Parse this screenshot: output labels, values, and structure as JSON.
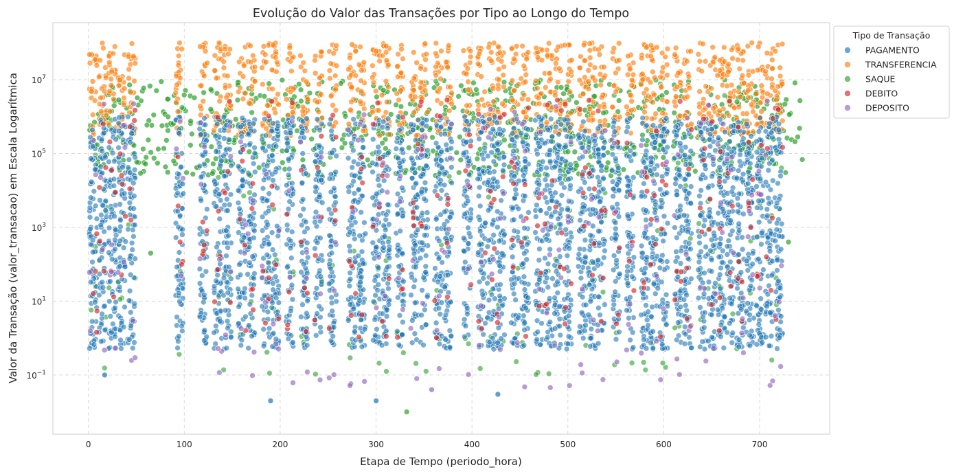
{
  "chart_data": {
    "type": "scatter",
    "title": "Evolução do Valor das Transações por Tipo ao Longo do Tempo",
    "xlabel": "Etapa de Tempo (periodo_hora)",
    "ylabel": "Valor da Transação (valor_transacao) em Escala Logarítmica",
    "xlim": [
      -37,
      773
    ],
    "x_ticks": [
      0,
      100,
      200,
      300,
      400,
      500,
      600,
      700
    ],
    "y_scale": "log",
    "ylim": [
      0.0025,
      350000000
    ],
    "y_ticks": [
      {
        "value": 0.1,
        "base": "10",
        "exp": "−1"
      },
      {
        "value": 10,
        "base": "10",
        "exp": "1"
      },
      {
        "value": 1000,
        "base": "10",
        "exp": "3"
      },
      {
        "value": 100000,
        "base": "10",
        "exp": "5"
      },
      {
        "value": 10000000,
        "base": "10",
        "exp": "7"
      }
    ],
    "grid": true,
    "legend": {
      "title": "Tipo de Transação",
      "placement": "outside-top-right"
    },
    "series": [
      {
        "name": "PAGAMENTO",
        "color": "#1f77b4",
        "typical_range": [
          0.5,
          1000000
        ]
      },
      {
        "name": "TRANSFERENCIA",
        "color": "#ff7f0e",
        "typical_range": [
          300000,
          100000000
        ]
      },
      {
        "name": "SAQUE",
        "color": "#2ca02c",
        "typical_range": [
          0.1,
          10000000
        ]
      },
      {
        "name": "DEBITO",
        "color": "#d62728",
        "typical_range": [
          1,
          3000000
        ]
      },
      {
        "name": "DEPOSITO",
        "color": "#9467bd",
        "typical_range": [
          0.04,
          3000000
        ]
      }
    ],
    "activity_bursts_x": [
      5,
      15,
      25,
      35,
      45,
      95,
      120,
      135,
      145,
      160,
      170,
      185,
      195,
      210,
      225,
      240,
      255,
      275,
      285,
      300,
      310,
      325,
      340,
      350,
      365,
      375,
      395,
      410,
      420,
      430,
      445,
      455,
      470,
      480,
      490,
      500,
      515,
      525,
      535,
      550,
      565,
      580,
      590,
      600,
      615,
      625,
      640,
      650,
      660,
      670,
      680,
      690,
      700,
      710,
      720
    ],
    "notable_points": [
      {
        "series": "SAQUE",
        "x": 332,
        "y": 0.01
      },
      {
        "series": "PAGAMENTO",
        "x": 300,
        "y": 0.02
      },
      {
        "series": "PAGAMENTO",
        "x": 190,
        "y": 0.02
      },
      {
        "series": "PAGAMENTO",
        "x": 427,
        "y": 0.03
      },
      {
        "series": "DEPOSITO",
        "x": 358,
        "y": 0.04
      },
      {
        "series": "PAGAMENTO",
        "x": 17,
        "y": 0.1
      },
      {
        "series": "SAQUE",
        "x": 65,
        "y": 200
      },
      {
        "series": "SAQUE",
        "x": 730,
        "y": 400
      },
      {
        "series": "TRANSFERENCIA",
        "x": 275,
        "y": 90000000
      },
      {
        "series": "TRANSFERENCIA",
        "x": 300,
        "y": 60000000
      }
    ]
  }
}
